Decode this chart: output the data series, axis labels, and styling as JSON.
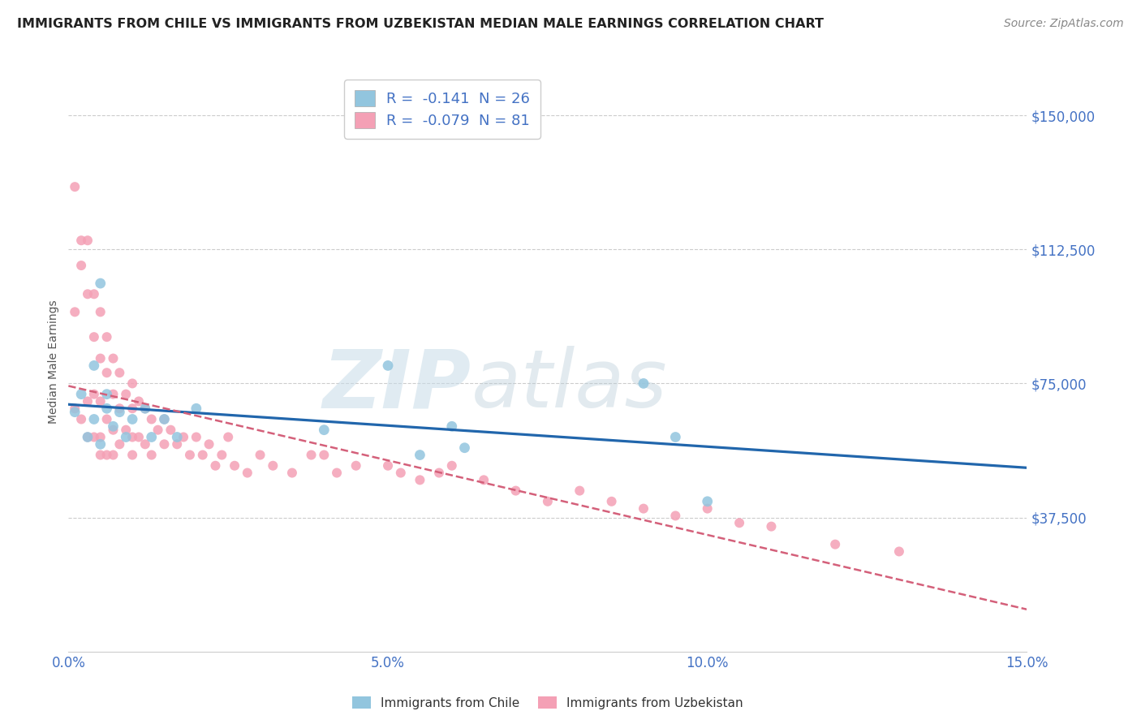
{
  "title": "IMMIGRANTS FROM CHILE VS IMMIGRANTS FROM UZBEKISTAN MEDIAN MALE EARNINGS CORRELATION CHART",
  "source": "Source: ZipAtlas.com",
  "ylabel": "Median Male Earnings",
  "xlim": [
    0.0,
    0.15
  ],
  "ylim": [
    0,
    162000
  ],
  "yticks": [
    37500,
    75000,
    112500,
    150000
  ],
  "ytick_labels": [
    "$37,500",
    "$75,000",
    "$112,500",
    "$150,000"
  ],
  "xticks": [
    0.0,
    0.05,
    0.1,
    0.15
  ],
  "xtick_labels": [
    "0.0%",
    "5.0%",
    "10.0%",
    "15.0%"
  ],
  "watermark_zip": "ZIP",
  "watermark_atlas": "atlas",
  "chile_color": "#92c5de",
  "chile_line_color": "#2166ac",
  "uzbekistan_color": "#f4a0b5",
  "uzbekistan_line_color": "#d4607a",
  "axis_color": "#4472c4",
  "title_color": "#222222",
  "grid_color": "#cccccc",
  "background_color": "#ffffff",
  "chile_R": -0.141,
  "chile_N": 26,
  "uzbekistan_R": -0.079,
  "uzbekistan_N": 81,
  "chile_name": "Immigrants from Chile",
  "uzbekistan_name": "Immigrants from Uzbekistan",
  "chile_x": [
    0.001,
    0.002,
    0.003,
    0.004,
    0.004,
    0.005,
    0.005,
    0.006,
    0.006,
    0.007,
    0.008,
    0.009,
    0.01,
    0.012,
    0.013,
    0.015,
    0.017,
    0.02,
    0.04,
    0.05,
    0.055,
    0.06,
    0.062,
    0.09,
    0.095,
    0.1
  ],
  "chile_y": [
    67000,
    72000,
    60000,
    65000,
    80000,
    103000,
    58000,
    68000,
    72000,
    63000,
    67000,
    60000,
    65000,
    68000,
    60000,
    65000,
    60000,
    68000,
    62000,
    80000,
    55000,
    63000,
    57000,
    75000,
    60000,
    42000
  ],
  "uzbekistan_x": [
    0.001,
    0.001,
    0.001,
    0.002,
    0.002,
    0.002,
    0.003,
    0.003,
    0.003,
    0.003,
    0.004,
    0.004,
    0.004,
    0.004,
    0.005,
    0.005,
    0.005,
    0.005,
    0.005,
    0.006,
    0.006,
    0.006,
    0.006,
    0.007,
    0.007,
    0.007,
    0.007,
    0.008,
    0.008,
    0.008,
    0.009,
    0.009,
    0.01,
    0.01,
    0.01,
    0.01,
    0.011,
    0.011,
    0.012,
    0.012,
    0.013,
    0.013,
    0.014,
    0.015,
    0.015,
    0.016,
    0.017,
    0.018,
    0.019,
    0.02,
    0.021,
    0.022,
    0.023,
    0.024,
    0.025,
    0.026,
    0.028,
    0.03,
    0.032,
    0.035,
    0.038,
    0.04,
    0.042,
    0.045,
    0.05,
    0.052,
    0.055,
    0.058,
    0.06,
    0.065,
    0.07,
    0.075,
    0.08,
    0.085,
    0.09,
    0.095,
    0.1,
    0.105,
    0.11,
    0.12,
    0.13
  ],
  "uzbekistan_y": [
    130000,
    95000,
    68000,
    115000,
    108000,
    65000,
    115000,
    100000,
    70000,
    60000,
    100000,
    88000,
    72000,
    60000,
    95000,
    82000,
    70000,
    60000,
    55000,
    88000,
    78000,
    65000,
    55000,
    82000,
    72000,
    62000,
    55000,
    78000,
    68000,
    58000,
    72000,
    62000,
    75000,
    68000,
    60000,
    55000,
    70000,
    60000,
    68000,
    58000,
    65000,
    55000,
    62000,
    65000,
    58000,
    62000,
    58000,
    60000,
    55000,
    60000,
    55000,
    58000,
    52000,
    55000,
    60000,
    52000,
    50000,
    55000,
    52000,
    50000,
    55000,
    55000,
    50000,
    52000,
    52000,
    50000,
    48000,
    50000,
    52000,
    48000,
    45000,
    42000,
    45000,
    42000,
    40000,
    38000,
    40000,
    36000,
    35000,
    30000,
    28000
  ]
}
